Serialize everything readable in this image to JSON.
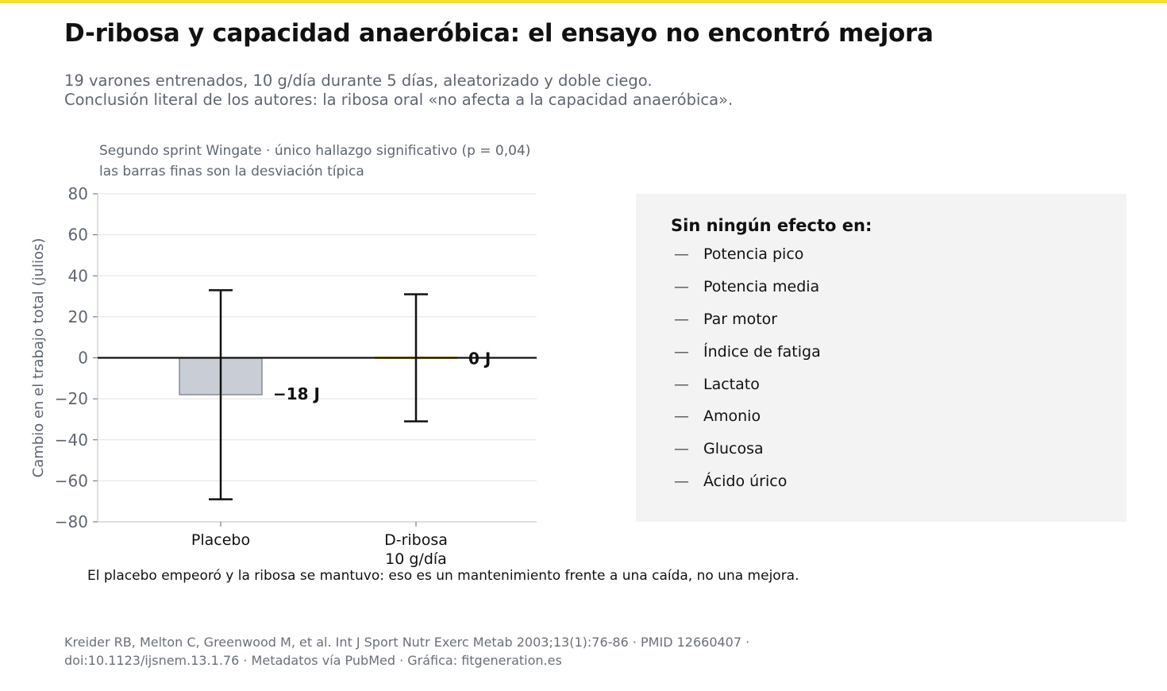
{
  "header": {
    "title": "D-ribosa y capacidad anaeróbica: el ensayo no encontró mejora",
    "subtitle_line1": "19 varones entrenados, 10 g/día durante 5 días, aleatorizado y doble ciego.",
    "subtitle_line2": "Conclusión literal de los autores: la ribosa oral «no afecta a la capacidad anaeróbica»."
  },
  "panel": {
    "title_line1": "Segundo sprint Wingate · único hallazgo significativo (p = 0,04)",
    "title_line2": "las barras finas son la desviación típica"
  },
  "chart_data": {
    "type": "bar",
    "categories": [
      [
        "Placebo"
      ],
      [
        "D-ribosa",
        "10 g/día"
      ]
    ],
    "values": [
      -18,
      0
    ],
    "value_labels": [
      "−18 J",
      "0 J"
    ],
    "error_sd": [
      51,
      31
    ],
    "ylabel": "Cambio en el trabajo total (julios)",
    "ylim": [
      -80,
      80
    ],
    "yticks": [
      80,
      60,
      40,
      20,
      0,
      -20,
      -40,
      -60,
      -80
    ],
    "ytick_labels": [
      "80",
      "60",
      "40",
      "20",
      "0",
      "−20",
      "−40",
      "−60",
      "−80"
    ],
    "grid": true,
    "colors": {
      "placebo": "#c9ced6",
      "ribosa": "#f0c419",
      "axis": "#111111",
      "grid": "#e3e3e3",
      "text": "#5f6670"
    }
  },
  "effects": {
    "title": "Sin ningún efecto en:",
    "dash": "—",
    "items": [
      "Potencia pico",
      "Potencia media",
      "Par motor",
      "Índice de fatiga",
      "Lactato",
      "Amonio",
      "Glucosa",
      "Ácido úrico"
    ]
  },
  "note": "El placebo empeoró y la ribosa se mantuvo: eso es un mantenimiento frente a una caída, no una mejora.",
  "source": {
    "line1": "Kreider RB, Melton C, Greenwood M, et al. Int J Sport Nutr Exerc Metab 2003;13(1):76-86 · PMID 12660407 ·",
    "line2": "doi:10.1123/ijsnem.13.1.76 · Metadatos vía PubMed · Gráfica: fitgeneration.es"
  }
}
